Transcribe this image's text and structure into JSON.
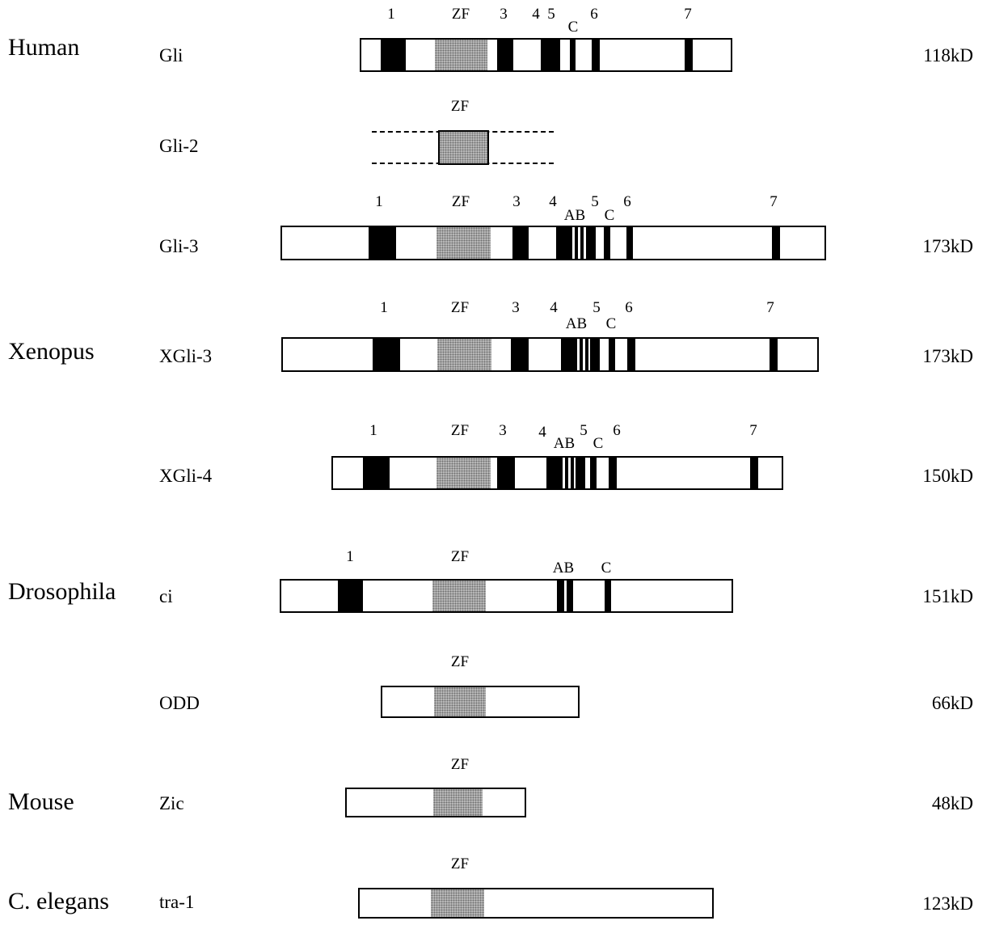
{
  "species": {
    "human": "Human",
    "xenopus": "Xenopus",
    "drosophila": "Drosophila",
    "mouse": "Mouse",
    "celegans": "C. elegans"
  },
  "proteins": {
    "gli": {
      "name": "Gli",
      "mass": "118kD",
      "labels": {
        "n1": "1",
        "zf": "ZF",
        "n3": "3",
        "n4": "4",
        "n5": "5",
        "c": "C",
        "n6": "6",
        "n7": "7"
      }
    },
    "gli2": {
      "name": "Gli-2",
      "labels": {
        "zf": "ZF"
      }
    },
    "gli3": {
      "name": "Gli-3",
      "mass": "173kD",
      "labels": {
        "n1": "1",
        "zf": "ZF",
        "n3": "3",
        "n4": "4",
        "ab": "AB",
        "n5": "5",
        "c": "C",
        "n6": "6",
        "n7": "7"
      }
    },
    "xgli3": {
      "name": "XGli-3",
      "mass": "173kD",
      "labels": {
        "n1": "1",
        "zf": "ZF",
        "n3": "3",
        "n4": "4",
        "ab": "AB",
        "n5": "5",
        "c": "C",
        "n6": "6",
        "n7": "7"
      }
    },
    "xgli4": {
      "name": "XGli-4",
      "mass": "150kD",
      "labels": {
        "n1": "1",
        "zf": "ZF",
        "n3": "3",
        "n4": "4",
        "ab": "AB",
        "n5": "5",
        "c": "C",
        "n6": "6",
        "n7": "7"
      }
    },
    "ci": {
      "name": "ci",
      "mass": "151kD",
      "labels": {
        "n1": "1",
        "zf": "ZF",
        "ab": "AB",
        "c": "C"
      }
    },
    "odd": {
      "name": "ODD",
      "mass": "66kD",
      "labels": {
        "zf": "ZF"
      }
    },
    "zic": {
      "name": "Zic",
      "mass": "48kD",
      "labels": {
        "zf": "ZF"
      }
    },
    "tra1": {
      "name": "tra-1",
      "mass": "123kD",
      "labels": {
        "zf": "ZF"
      }
    }
  }
}
